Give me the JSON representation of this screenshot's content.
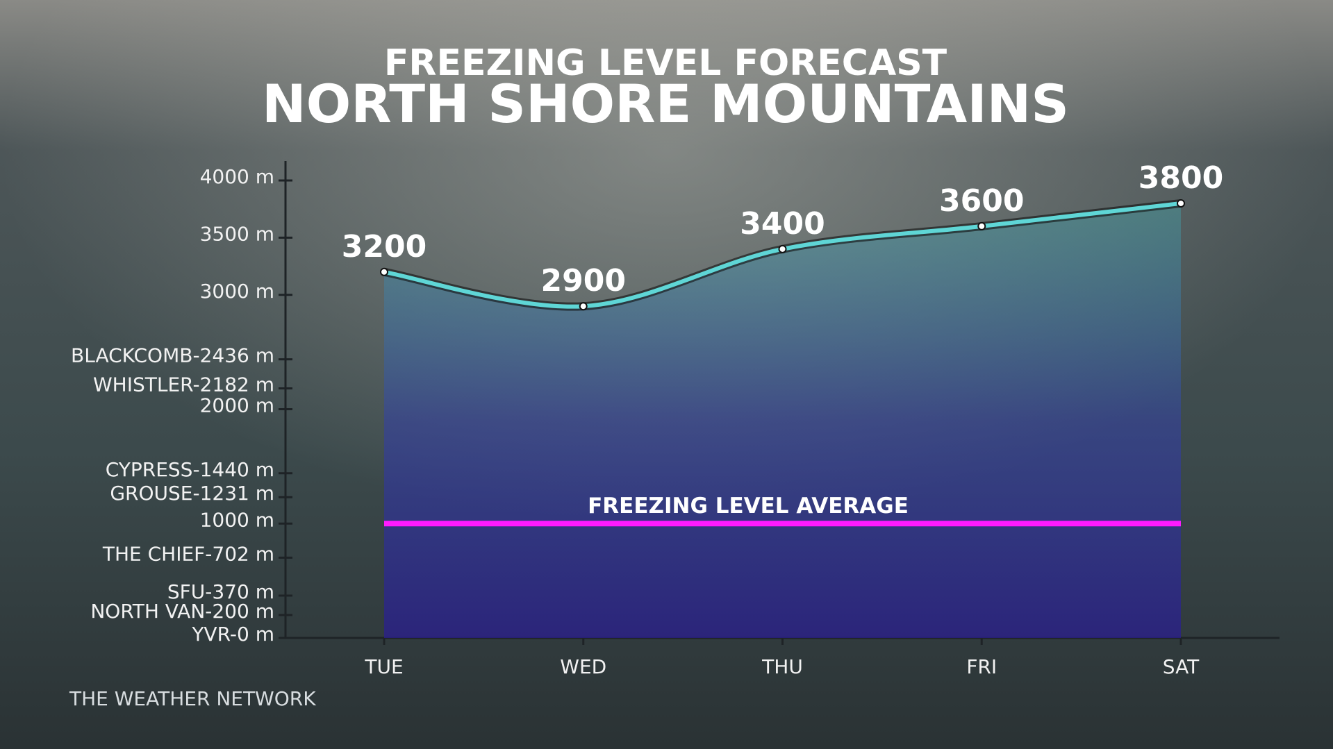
{
  "chart_data": {
    "type": "line",
    "title": "FREEZING LEVEL FORECAST",
    "subtitle": "NORTH SHORE MOUNTAINS",
    "source": "THE WEATHER NETWORK",
    "categories": [
      "TUE",
      "WED",
      "THU",
      "FRI",
      "SAT"
    ],
    "series": [
      {
        "name": "Freezing level",
        "color": "#5fd6d6",
        "values": [
          3200,
          2900,
          3400,
          3600,
          3800
        ]
      }
    ],
    "reference_line": {
      "label": "FREEZING LEVEL AVERAGE",
      "value": 1000,
      "color": "#ff1aff"
    },
    "ylim": [
      0,
      4170
    ],
    "yticks": [
      {
        "value": 0,
        "label": "YVR-0 m"
      },
      {
        "value": 200,
        "label": "NORTH VAN-200 m"
      },
      {
        "value": 370,
        "label": "SFU-370 m"
      },
      {
        "value": 702,
        "label": "THE CHIEF-702 m"
      },
      {
        "value": 1000,
        "label": "1000 m"
      },
      {
        "value": 1231,
        "label": "GROUSE-1231 m"
      },
      {
        "value": 1440,
        "label": "CYPRESS-1440 m"
      },
      {
        "value": 2000,
        "label": "2000 m"
      },
      {
        "value": 2182,
        "label": "WHISTLER-2182 m"
      },
      {
        "value": 2436,
        "label": "BLACKCOMB-2436 m"
      },
      {
        "value": 3000,
        "label": "3000 m"
      },
      {
        "value": 3500,
        "label": "3500 m"
      },
      {
        "value": 4000,
        "label": "4000 m"
      }
    ]
  }
}
